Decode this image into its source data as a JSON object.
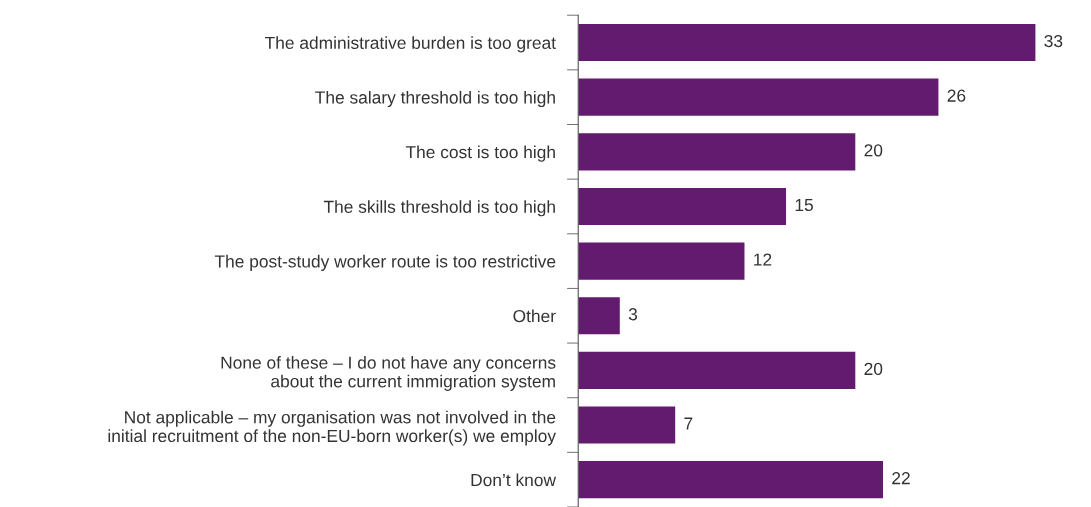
{
  "chart_data": {
    "type": "bar",
    "orientation": "horizontal",
    "categories": [
      "The administrative burden is too great",
      "The salary threshold is too high",
      "The cost is too high",
      "The skills threshold is too high",
      "The post-study worker route is too restrictive",
      "Other",
      "None of these – I do not have any concerns\nabout the current immigration system",
      "Not applicable – my organisation was not involved in the\ninitial recruitment of the non-EU-born worker(s) we employ",
      "Don’t know"
    ],
    "values": [
      33,
      26,
      20,
      15,
      12,
      3,
      20,
      7,
      22
    ],
    "color": "#621b6e",
    "tick_labels": "y",
    "data_labels": true,
    "grid": false,
    "legend": false
  }
}
